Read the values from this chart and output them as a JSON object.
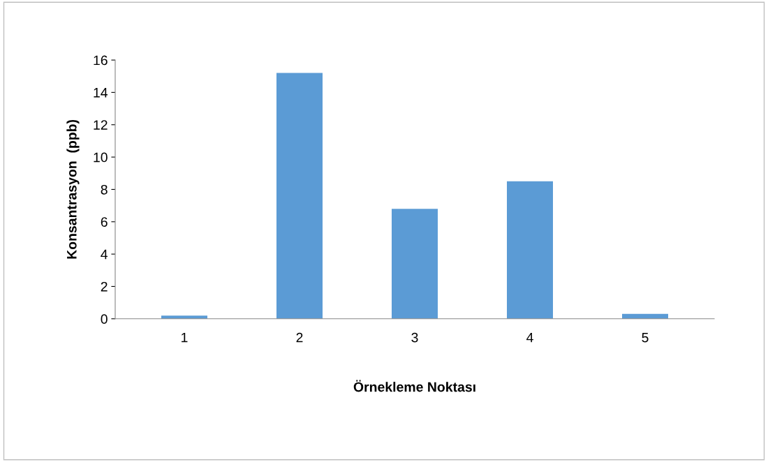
{
  "chart_data": {
    "type": "bar",
    "xlabel": "Örnekleme Noktası",
    "ylabel": "Konsantrasyon  (ppb)",
    "categories": [
      "1",
      "2",
      "3",
      "4",
      "5"
    ],
    "values": [
      0.2,
      15.2,
      6.8,
      8.5,
      0.3
    ],
    "color": "#5b9bd5",
    "ylim": [
      0,
      16
    ],
    "yticks": [
      0,
      2,
      4,
      6,
      8,
      10,
      12,
      14,
      16
    ],
    "grid": false,
    "legend": false
  }
}
